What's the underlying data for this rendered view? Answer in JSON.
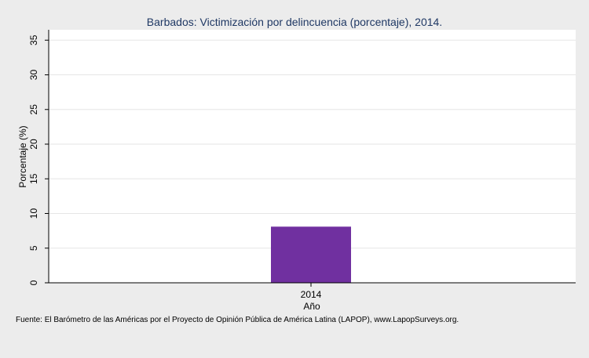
{
  "chart_data": {
    "type": "bar",
    "title": "Barbados: Victimización por delincuencia (porcentaje), 2014.",
    "xlabel": "Año",
    "ylabel": "Porcentaje (%)",
    "categories": [
      "2014"
    ],
    "values": [
      8.1
    ],
    "ylim": [
      0,
      36.5
    ],
    "yticks": [
      0,
      5,
      10,
      15,
      20,
      25,
      30,
      35
    ],
    "ytick_labels": [
      "0",
      "5",
      "10",
      "15",
      "20",
      "25",
      "30",
      "35"
    ],
    "grid": true,
    "legend": "none",
    "colors": {
      "bar": "#7030a0",
      "title": "#1f3864",
      "background": "#ececec",
      "plot_background": "#ffffff",
      "gridline": "#e6e6e6"
    }
  },
  "footer": {
    "source": "Fuente: El Barómetro de las Américas por el Proyecto de Opinión Pública de América Latina (LAPOP), www.LapopSurveys.org."
  }
}
